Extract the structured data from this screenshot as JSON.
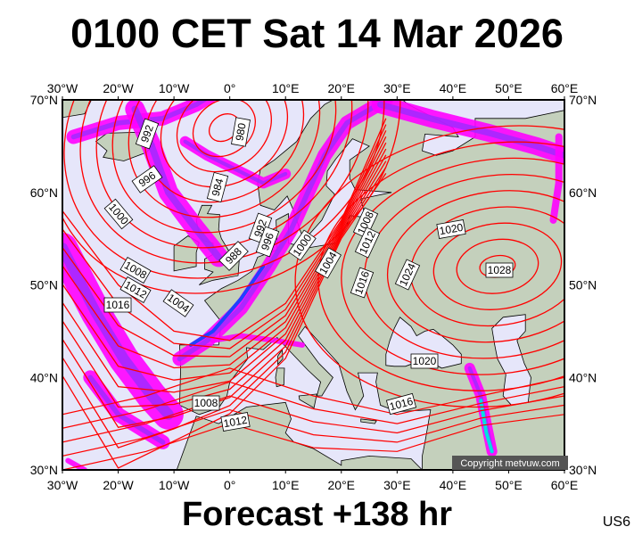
{
  "title": "0100 CET Sat 14 Mar 2026",
  "footer": "Forecast +138 hr",
  "model_code": "US6",
  "copyright": "Copyright metvuw.com",
  "map": {
    "lon_range": [
      -30,
      60
    ],
    "lat_range": [
      30,
      70
    ],
    "lon_ticks": [
      "30°W",
      "20°W",
      "10°W",
      "0°",
      "10°E",
      "20°E",
      "30°E",
      "40°E",
      "50°E",
      "60°E"
    ],
    "lat_ticks": [
      "70°N",
      "60°N",
      "50°N",
      "40°N",
      "30°N"
    ],
    "isobar_labels": [
      "992",
      "980",
      "996",
      "984",
      "1000",
      "992",
      "996",
      "988",
      "1000",
      "1008",
      "1012",
      "1016",
      "1004",
      "1004",
      "1008",
      "1012",
      "1016",
      "1024",
      "1020",
      "1028",
      "1020",
      "1008",
      "1012",
      "1016"
    ],
    "colors": {
      "sea": "#e6e6fa",
      "land": "#c4d0bc",
      "isobar": "#ff0000",
      "precip_light": "#ff00ff",
      "precip_moderate": "#9a2cff",
      "precip_heavy": "#2040ff"
    }
  }
}
